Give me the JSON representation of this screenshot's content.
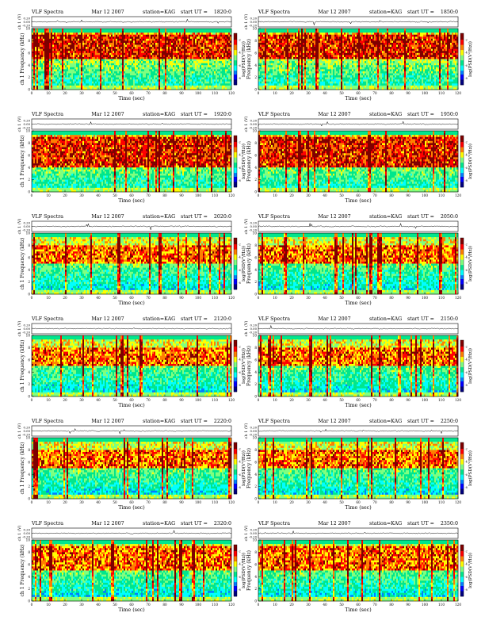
{
  "figure": {
    "colors": {
      "background": "#ffffff",
      "colormap": [
        "#00007f",
        "#0000ff",
        "#007fff",
        "#00ffff",
        "#00e68c",
        "#7fff7f",
        "#ffff00",
        "#ff7f00",
        "#ff0000",
        "#7f0000"
      ]
    }
  },
  "common": {
    "title": "VLF Spectra",
    "date": "Mar 12 2007",
    "station": "station=KAG",
    "start_prefix": "start  UT  =",
    "top_ylabel": "ch 1 (V)",
    "top_ylabel_left": "ch 1 (V)",
    "top_ylabel_right": "ch 1 (V)",
    "top_yticks": [
      "0.20",
      "0.00",
      "-0.20"
    ],
    "spec_ylabel_left": "ch 1 Frequency (kHz)",
    "spec_ylabel_right": "Frequency (kHz)",
    "spec_yticks": [
      "0",
      "2",
      "4",
      "6",
      "8",
      "10"
    ],
    "colorbar_label": "log(PSD(V²/Hz))",
    "colorbar_ticks": [
      "-2",
      "-4",
      "-6",
      "-8"
    ],
    "xlabel": "Time (sec)",
    "xticks": [
      "0",
      "10",
      "20",
      "30",
      "40",
      "50",
      "60",
      "70",
      "80",
      "90",
      "100",
      "110",
      "120"
    ]
  },
  "chart_data": [
    {
      "type": "heatmap",
      "start_time": "1820:0",
      "x_range": [
        0,
        120
      ],
      "y_range_khz": [
        0,
        10
      ],
      "band_khz": [
        5,
        9
      ],
      "intensity": "high"
    },
    {
      "type": "heatmap",
      "start_time": "1850:0",
      "x_range": [
        0,
        120
      ],
      "y_range_khz": [
        0,
        10
      ],
      "band_khz": [
        5,
        9
      ],
      "intensity": "high"
    },
    {
      "type": "heatmap",
      "start_time": "1920:0",
      "x_range": [
        0,
        120
      ],
      "y_range_khz": [
        0,
        10
      ],
      "band_khz": [
        4,
        9
      ],
      "intensity": "high"
    },
    {
      "type": "heatmap",
      "start_time": "1950:0",
      "x_range": [
        0,
        120
      ],
      "y_range_khz": [
        0,
        10
      ],
      "band_khz": [
        4,
        9
      ],
      "intensity": "high"
    },
    {
      "type": "heatmap",
      "start_time": "2020:0",
      "x_range": [
        0,
        120
      ],
      "y_range_khz": [
        0,
        10
      ],
      "band_khz": [
        5,
        8
      ],
      "intensity": "medium"
    },
    {
      "type": "heatmap",
      "start_time": "2050:0",
      "x_range": [
        0,
        120
      ],
      "y_range_khz": [
        0,
        10
      ],
      "band_khz": [
        5,
        8
      ],
      "intensity": "medium"
    },
    {
      "type": "heatmap",
      "start_time": "2120:0",
      "x_range": [
        0,
        120
      ],
      "y_range_khz": [
        0,
        10
      ],
      "band_khz": [
        5,
        8
      ],
      "intensity": "medium"
    },
    {
      "type": "heatmap",
      "start_time": "2150:0",
      "x_range": [
        0,
        120
      ],
      "y_range_khz": [
        0,
        10
      ],
      "band_khz": [
        5,
        8
      ],
      "intensity": "medium"
    },
    {
      "type": "heatmap",
      "start_time": "2220:0",
      "x_range": [
        0,
        120
      ],
      "y_range_khz": [
        0,
        10
      ],
      "band_khz": [
        5,
        8
      ],
      "intensity": "medium"
    },
    {
      "type": "heatmap",
      "start_time": "2250:0",
      "x_range": [
        0,
        120
      ],
      "y_range_khz": [
        0,
        10
      ],
      "band_khz": [
        5,
        8
      ],
      "intensity": "medium"
    },
    {
      "type": "heatmap",
      "start_time": "2320:0",
      "x_range": [
        0,
        120
      ],
      "y_range_khz": [
        0,
        10
      ],
      "band_khz": [
        5,
        9
      ],
      "intensity": "medium"
    },
    {
      "type": "heatmap",
      "start_time": "2350:0",
      "x_range": [
        0,
        120
      ],
      "y_range_khz": [
        0,
        10
      ],
      "band_khz": [
        5,
        9
      ],
      "intensity": "medium"
    }
  ]
}
